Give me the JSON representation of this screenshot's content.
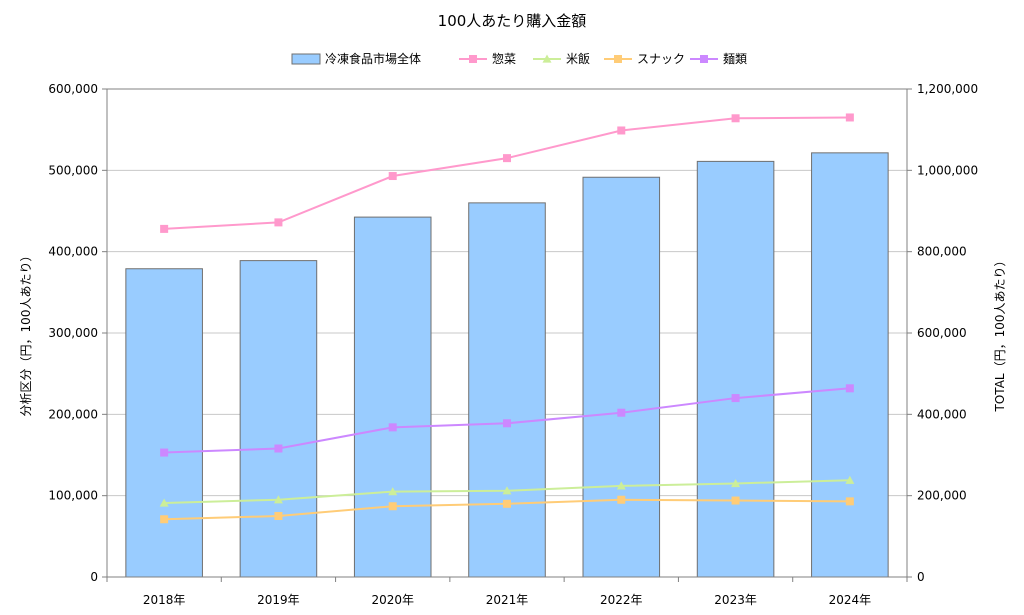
{
  "chart_data": {
    "type": "bar",
    "title": "100人あたり購入金額",
    "categories": [
      "2018年",
      "2019年",
      "2020年",
      "2021年",
      "2022年",
      "2023年",
      "2024年"
    ],
    "ylabel": "分析区分（円，100人あたり）",
    "y2label": "TOTAL（円，100人あたり）",
    "ylim": [
      0,
      600000
    ],
    "y2lim": [
      0,
      1200000
    ],
    "yticks": [
      "0",
      "100,000",
      "200,000",
      "300,000",
      "400,000",
      "500,000",
      "600,000"
    ],
    "y2ticks": [
      "0",
      "200,000",
      "400,000",
      "600,000",
      "800,000",
      "1,000,000",
      "1,200,000"
    ],
    "grid": true,
    "legend_position": "top",
    "series": [
      {
        "name": "冷凍食品市場全体",
        "type": "bar",
        "axis": "right",
        "color": "#99ccff",
        "values": [
          758000,
          778000,
          885000,
          920000,
          983000,
          1022000,
          1043000
        ]
      },
      {
        "name": "惣菜",
        "type": "line",
        "axis": "left",
        "color": "#ff99cc",
        "marker": "square",
        "values": [
          428000,
          436000,
          493000,
          515000,
          549000,
          564000,
          565000
        ]
      },
      {
        "name": "米飯",
        "type": "line",
        "axis": "left",
        "color": "#ccee99",
        "marker": "triangle",
        "values": [
          91000,
          95000,
          105000,
          106000,
          112000,
          115000,
          119000
        ]
      },
      {
        "name": "スナック",
        "type": "line",
        "axis": "left",
        "color": "#ffcc77",
        "marker": "square",
        "values": [
          71000,
          75000,
          87000,
          90000,
          95000,
          94000,
          93000
        ]
      },
      {
        "name": "麺類",
        "type": "line",
        "axis": "left",
        "color": "#cc88ff",
        "marker": "square",
        "values": [
          153000,
          158000,
          184000,
          189000,
          202000,
          220000,
          232000
        ]
      }
    ]
  }
}
